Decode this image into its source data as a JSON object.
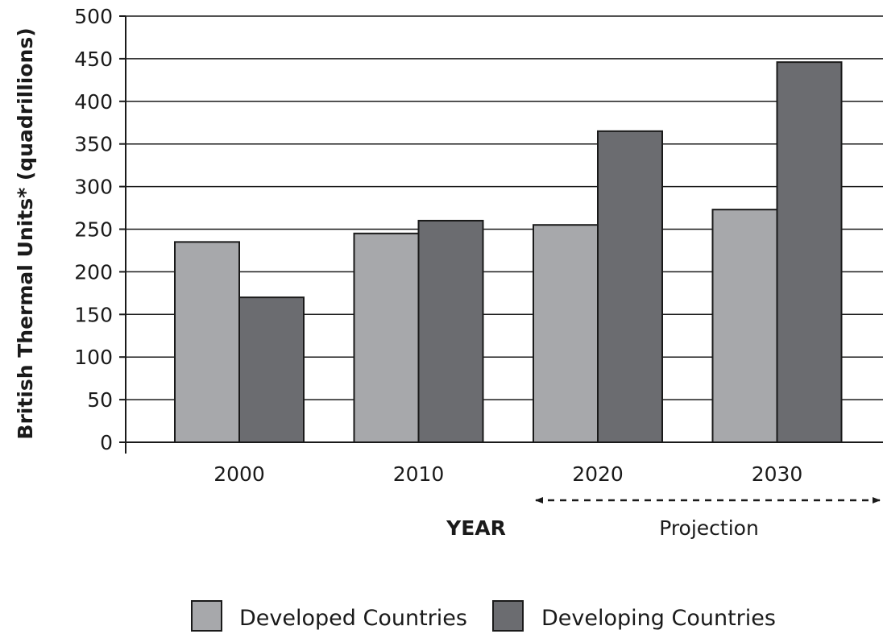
{
  "chart_data": {
    "type": "bar",
    "title": "",
    "xlabel": "YEAR",
    "ylabel": "British Thermal Units* (quadrillions)",
    "categories": [
      "2000",
      "2010",
      "2020",
      "2030"
    ],
    "series": [
      {
        "name": "Developed Countries",
        "values": [
          235,
          245,
          255,
          273
        ],
        "color": "#a7a8ab"
      },
      {
        "name": "Developing Countries",
        "values": [
          170,
          260,
          365,
          446
        ],
        "color": "#6b6c70"
      }
    ],
    "ylim": [
      0,
      500
    ],
    "yticks": [
      "0",
      "50",
      "100",
      "150",
      "200",
      "250",
      "300",
      "350",
      "400",
      "450",
      "500"
    ],
    "grid": true,
    "annotation": "Projection",
    "annotation_range": [
      "2020",
      "2030"
    ],
    "legend_position": "bottom"
  }
}
